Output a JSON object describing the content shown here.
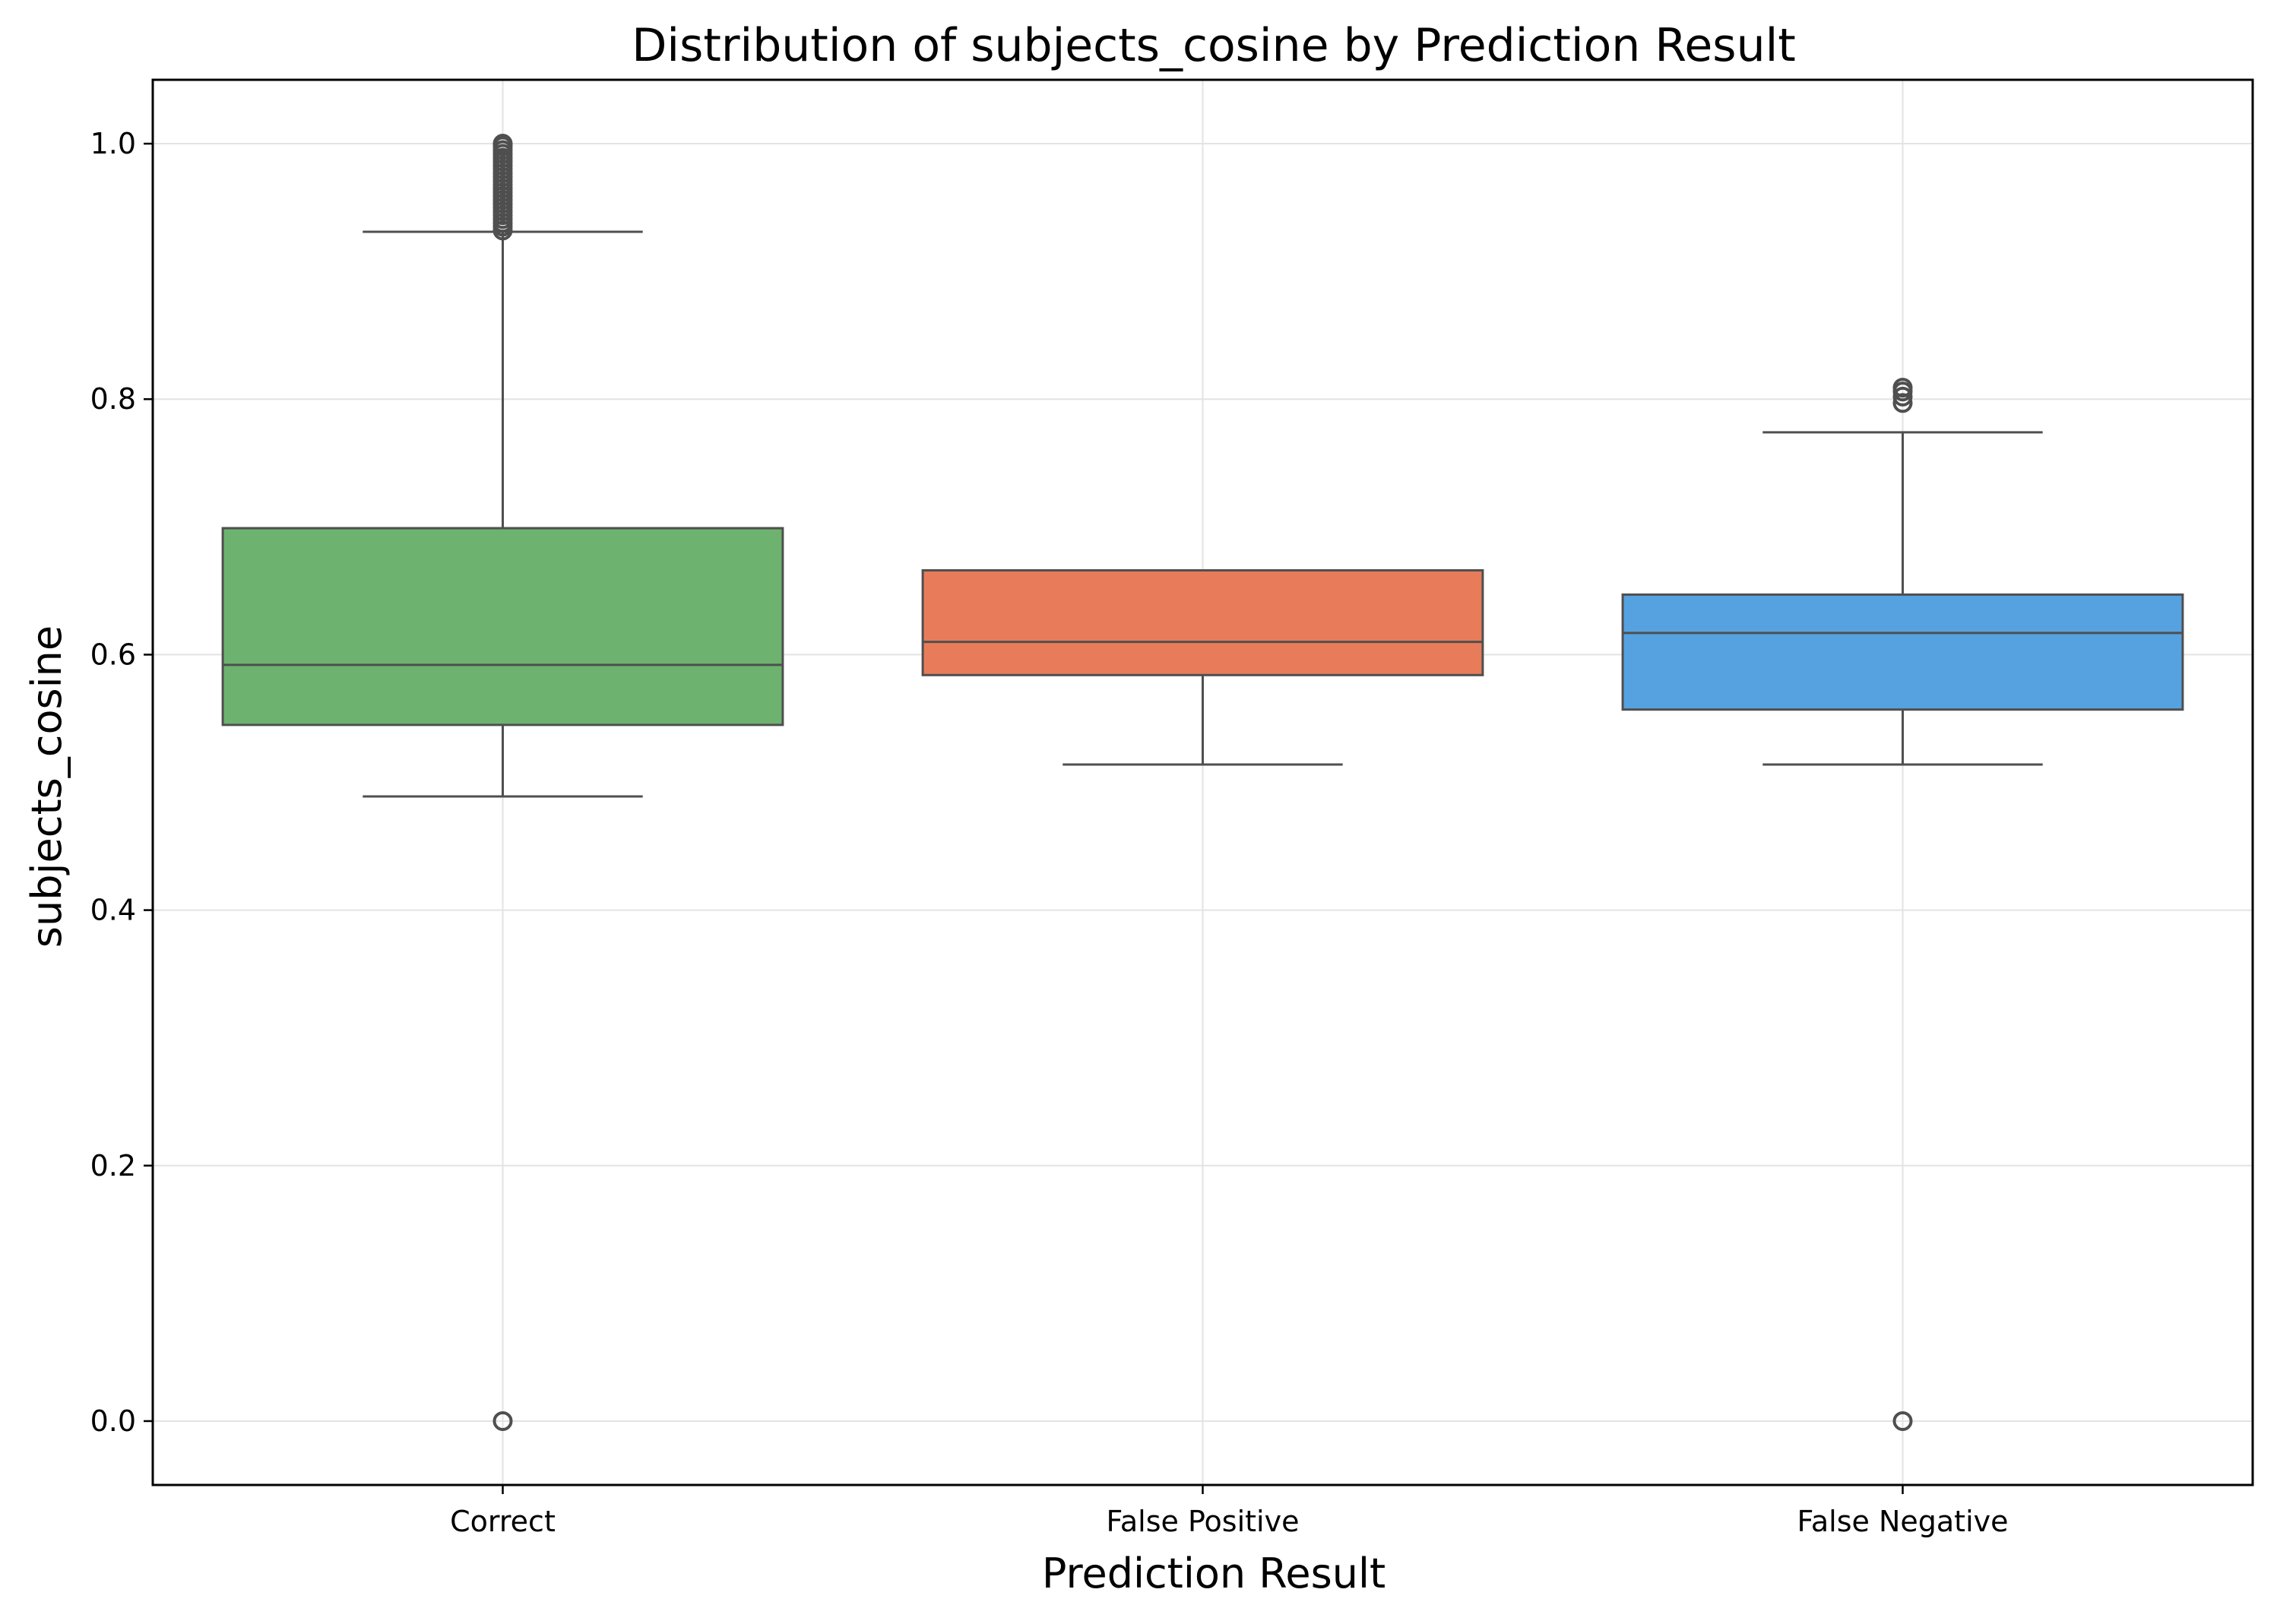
{
  "chart_data": {
    "type": "box",
    "title": "Distribution of subjects_cosine by Prediction Result",
    "xlabel": "Prediction Result",
    "ylabel": "subjects_cosine",
    "ylim": [
      -0.05,
      1.05
    ],
    "yticks": [
      "0.0",
      "0.2",
      "0.4",
      "0.6",
      "0.8",
      "1.0"
    ],
    "grid": true,
    "categories": [
      "Correct",
      "False Positive",
      "False Negative"
    ],
    "boxes": [
      {
        "category": "Correct",
        "color": "#6db36f",
        "whisker_low": 0.489,
        "q1": 0.545,
        "median": 0.592,
        "q3": 0.699,
        "whisker_high": 0.931,
        "outliers": [
          0.0,
          0.932,
          0.935,
          0.938,
          0.941,
          0.944,
          0.947,
          0.95,
          0.953,
          0.956,
          0.959,
          0.962,
          0.965,
          0.968,
          0.971,
          0.974,
          0.977,
          0.98,
          0.983,
          0.986,
          0.989,
          0.992,
          0.995,
          0.998,
          1.0
        ]
      },
      {
        "category": "False Positive",
        "color": "#e87c5a",
        "whisker_low": 0.514,
        "q1": 0.584,
        "median": 0.61,
        "q3": 0.666,
        "whisker_high": 0.666,
        "outliers": []
      },
      {
        "category": "False Negative",
        "color": "#56a2e0",
        "whisker_low": 0.514,
        "q1": 0.557,
        "median": 0.617,
        "q3": 0.647,
        "whisker_high": 0.774,
        "outliers": [
          0.0,
          0.797,
          0.802,
          0.806,
          0.809
        ]
      }
    ]
  }
}
